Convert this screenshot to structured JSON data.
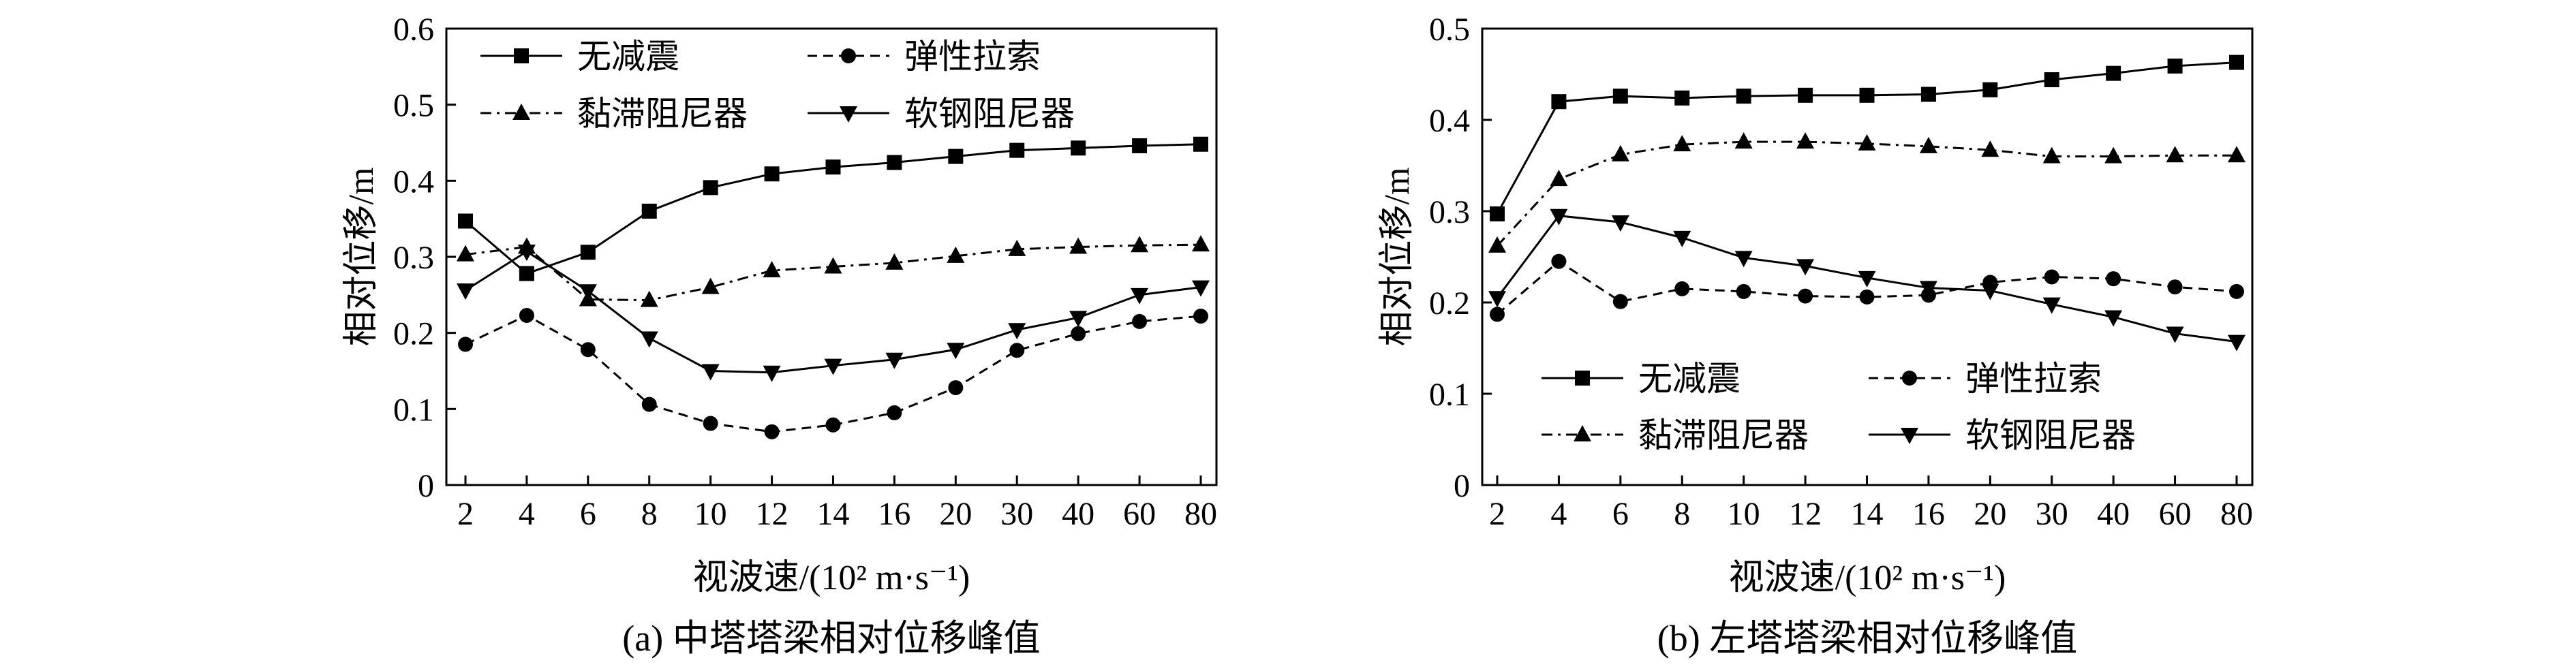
{
  "chart_data": [
    {
      "type": "line",
      "caption": "(a) 中塔塔梁相对位移峰值",
      "xlabel": "视波速/(10² m·s⁻¹)",
      "ylabel": "相对位移/m",
      "categories": [
        "2",
        "4",
        "6",
        "8",
        "10",
        "12",
        "14",
        "16",
        "20",
        "30",
        "40",
        "60",
        "80"
      ],
      "ylim": [
        0,
        0.6
      ],
      "yticks": [
        "0",
        "0.1",
        "0.2",
        "0.3",
        "0.4",
        "0.5",
        "0.6"
      ],
      "grid": false,
      "legend_position": "top-left",
      "series": [
        {
          "name": "无减震",
          "marker": "square",
          "dash": "solid",
          "values": [
            0.347,
            0.278,
            0.306,
            0.36,
            0.391,
            0.409,
            0.418,
            0.424,
            0.432,
            0.44,
            0.443,
            0.446,
            0.448
          ]
        },
        {
          "name": "弹性拉索",
          "marker": "circle",
          "dash": "dashed",
          "values": [
            0.185,
            0.223,
            0.178,
            0.106,
            0.081,
            0.07,
            0.079,
            0.095,
            0.128,
            0.177,
            0.199,
            0.215,
            0.222
          ]
        },
        {
          "name": "黏滞阻尼器",
          "marker": "triangle-up",
          "dash": "dashdot",
          "values": [
            0.303,
            0.313,
            0.244,
            0.243,
            0.26,
            0.282,
            0.287,
            0.292,
            0.301,
            0.31,
            0.313,
            0.315,
            0.316
          ]
        },
        {
          "name": "软钢阻尼器",
          "marker": "triangle-down",
          "dash": "solid",
          "values": [
            0.256,
            0.307,
            0.255,
            0.193,
            0.15,
            0.148,
            0.157,
            0.165,
            0.178,
            0.204,
            0.22,
            0.25,
            0.26
          ]
        }
      ]
    },
    {
      "type": "line",
      "caption": "(b) 左塔塔梁相对位移峰值",
      "xlabel": "视波速/(10² m·s⁻¹)",
      "ylabel": "相对位移/m",
      "categories": [
        "2",
        "4",
        "6",
        "8",
        "10",
        "12",
        "14",
        "16",
        "20",
        "30",
        "40",
        "60",
        "80"
      ],
      "ylim": [
        0,
        0.5
      ],
      "yticks": [
        "0",
        "0.1",
        "0.2",
        "0.3",
        "0.4",
        "0.5"
      ],
      "grid": false,
      "legend_position": "bottom-left",
      "series": [
        {
          "name": "无减震",
          "marker": "square",
          "dash": "solid",
          "values": [
            0.297,
            0.42,
            0.426,
            0.424,
            0.426,
            0.427,
            0.427,
            0.428,
            0.433,
            0.444,
            0.451,
            0.459,
            0.463
          ]
        },
        {
          "name": "弹性拉索",
          "marker": "circle",
          "dash": "dashed",
          "values": [
            0.187,
            0.245,
            0.201,
            0.215,
            0.212,
            0.207,
            0.206,
            0.208,
            0.222,
            0.228,
            0.226,
            0.217,
            0.212
          ]
        },
        {
          "name": "黏滞阻尼器",
          "marker": "triangle-up",
          "dash": "dashdot",
          "values": [
            0.262,
            0.335,
            0.362,
            0.373,
            0.376,
            0.376,
            0.374,
            0.371,
            0.367,
            0.36,
            0.36,
            0.361,
            0.361
          ]
        },
        {
          "name": "软钢阻尼器",
          "marker": "triangle-down",
          "dash": "solid",
          "values": [
            0.205,
            0.295,
            0.288,
            0.271,
            0.249,
            0.24,
            0.227,
            0.216,
            0.213,
            0.198,
            0.184,
            0.166,
            0.157
          ]
        }
      ]
    }
  ]
}
